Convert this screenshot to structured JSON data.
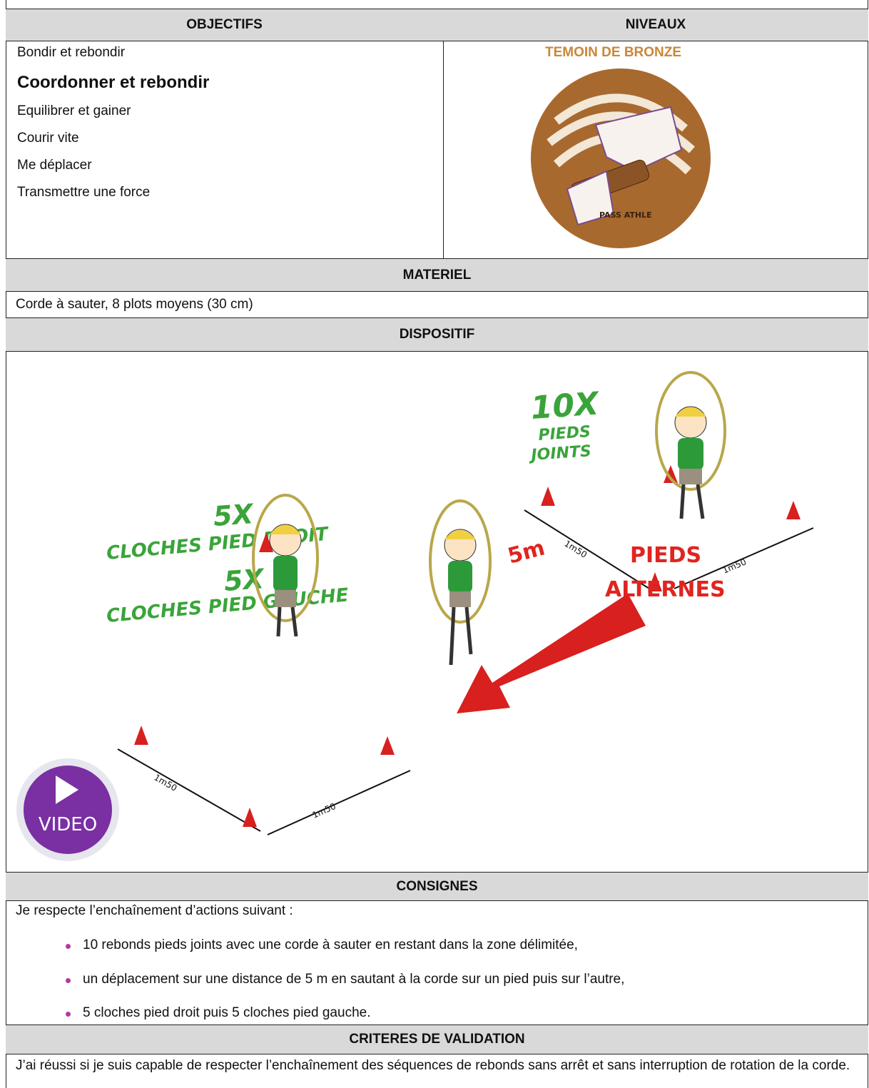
{
  "header": {
    "objectifs": "OBJECTIFS",
    "niveaux": "NIVEAUX"
  },
  "objectifs": [
    "Bondir et rebondir",
    "Coordonner et rebondir",
    "Equilibrer et gainer",
    "Courir vite",
    "Me déplacer",
    "Transmettre une force"
  ],
  "niveau": {
    "label": "TEMOIN DE BRONZE",
    "badge": "PASS ATHLE"
  },
  "materiel": {
    "title": "MATERIEL",
    "text": "Corde à sauter, 8 plots moyens (30 cm)"
  },
  "dispositif": {
    "title": "DISPOSITIF",
    "annotations": [
      "10X",
      "PIEDS",
      "JOINTS",
      "5X",
      "CLOCHES PIED DROIT",
      "5X",
      "CLOCHES PIED GAUCHE",
      "1m50",
      "1m50",
      "1m50",
      "1m50",
      "5m",
      "PIEDS",
      "ALTERNES"
    ],
    "video": "VIDEO"
  },
  "consignes": {
    "title": "CONSIGNES",
    "intro": "Je respecte l’enchaînement d’actions suivant :",
    "items": [
      "10 rebonds pieds joints avec une corde à sauter en restant dans la zone délimitée,",
      "un déplacement sur une distance de 5 m en sautant à la corde sur un pied puis sur l’autre,",
      "5 cloches pied droit puis 5 cloches pied gauche."
    ]
  },
  "criteres": {
    "title": "CRITERES DE VALIDATION",
    "text": "J’ai réussi si je suis capable de respecter l’enchaînement des séquences de rebonds sans arrêt et sans interruption de rotation de la corde."
  }
}
